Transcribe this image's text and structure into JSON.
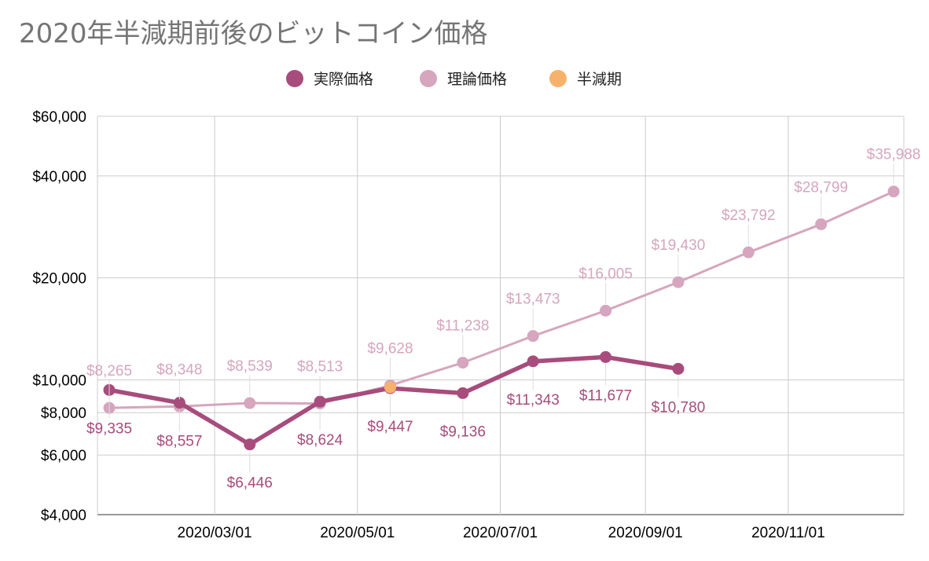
{
  "chart_data": {
    "type": "line",
    "title": "2020年半減期前後のビットコイン価格",
    "xlabel": "",
    "ylabel": "",
    "y_scale": "log",
    "ylim": [
      4000,
      60000
    ],
    "y_ticks": [
      4000,
      6000,
      8000,
      10000,
      20000,
      40000,
      60000
    ],
    "y_tick_labels": [
      "$4,000",
      "$6,000",
      "$8,000",
      "$10,000",
      "$20,000",
      "$40,000",
      "$60,000"
    ],
    "x_range": [
      "2020-01-16",
      "2020-12-16"
    ],
    "x_ticks": [
      "2020-03-01",
      "2020-05-01",
      "2020-07-01",
      "2020-09-01",
      "2020-11-01"
    ],
    "x_tick_labels": [
      "2020/03/01",
      "2020/05/01",
      "2020/07/01",
      "2020/09/01",
      "2020/11/01"
    ],
    "grid": true,
    "legend_position": "top-center",
    "legend": [
      "実際価格",
      "理論価格",
      "半減期"
    ],
    "series": [
      {
        "name": "実際価格",
        "color": "#a74c7c",
        "x": [
          "2020-01-16",
          "2020-02-15",
          "2020-03-16",
          "2020-04-15",
          "2020-05-15",
          "2020-06-15",
          "2020-07-15",
          "2020-08-15",
          "2020-09-15"
        ],
        "values": [
          9335,
          8557,
          6446,
          8624,
          9447,
          9136,
          11343,
          11677,
          10780
        ],
        "labels": [
          "$9,335",
          "$8,557",
          "$6,446",
          "$8,624",
          "$9,447",
          "$9,136",
          "$11,343",
          "$11,677",
          "$10,780"
        ]
      },
      {
        "name": "理論価格",
        "color": "#d5a6bd",
        "x": [
          "2020-01-16",
          "2020-02-15",
          "2020-03-16",
          "2020-04-15",
          "2020-05-15",
          "2020-06-15",
          "2020-07-15",
          "2020-08-15",
          "2020-09-15",
          "2020-10-15",
          "2020-11-15",
          "2020-12-16"
        ],
        "values": [
          8265,
          8348,
          8539,
          8513,
          9628,
          11238,
          13473,
          16005,
          19430,
          23792,
          28799,
          35988
        ],
        "labels": [
          "$8,265",
          "$8,348",
          "$8,539",
          "$8,513",
          "$9,628",
          "$11,238",
          "$13,473",
          "$16,005",
          "$19,430",
          "$23,792",
          "$28,799",
          "$35,988"
        ]
      },
      {
        "name": "半減期",
        "color": "#f6b26b",
        "x": [
          "2020-05-15"
        ],
        "values": [
          9500
        ],
        "labels": []
      }
    ]
  }
}
